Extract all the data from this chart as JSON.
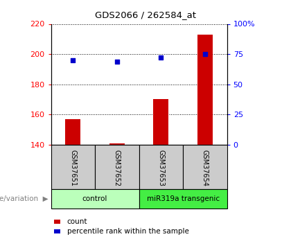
{
  "title": "GDS2066 / 262584_at",
  "samples": [
    "GSM37651",
    "GSM37652",
    "GSM37653",
    "GSM37654"
  ],
  "counts": [
    157,
    141,
    170,
    213
  ],
  "percentiles": [
    70,
    69,
    72,
    75
  ],
  "ylim_left": [
    140,
    220
  ],
  "ylim_right": [
    0,
    100
  ],
  "left_ticks": [
    140,
    160,
    180,
    200,
    220
  ],
  "right_ticks": [
    0,
    25,
    50,
    75,
    100
  ],
  "right_tick_labels": [
    "0",
    "25",
    "50",
    "75",
    "100%"
  ],
  "bar_color": "#cc0000",
  "dot_color": "#0000cc",
  "groups": [
    {
      "label": "control",
      "indices": [
        0,
        1
      ],
      "color": "#bbffbb"
    },
    {
      "label": "miR319a transgenic",
      "indices": [
        2,
        3
      ],
      "color": "#44ee44"
    }
  ],
  "genotype_label": "genotype/variation",
  "legend_count_label": "count",
  "legend_percentile_label": "percentile rank within the sample",
  "bar_color_legend": "#cc0000",
  "dot_color_legend": "#0000cc",
  "label_area_color": "#cccccc",
  "plot_bg_color": "#ffffff"
}
